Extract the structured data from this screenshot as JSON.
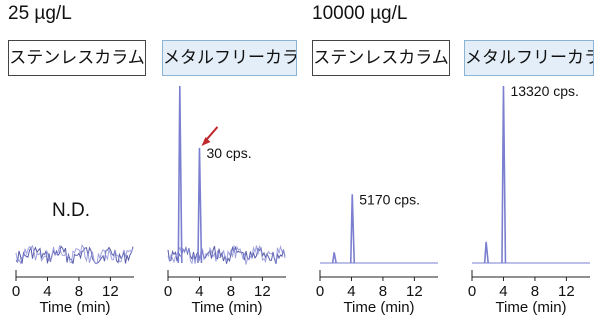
{
  "header": {
    "conc_low": "25 µg/L",
    "conc_high": "10000 µg/L"
  },
  "panel_labels": [
    "ステンレスカラム",
    "メタルフリーカラム",
    "ステンレスカラム",
    "メタルフリーカラム"
  ],
  "colors": {
    "trace": "#7a7fcf",
    "arrow": "#c0282d",
    "metal_label_bg": "#e3eef8"
  },
  "chart_data": [
    {
      "type": "line",
      "column": "ステンレスカラム",
      "concentration": "25 µg/L",
      "xlabel": "Time (min)",
      "xticks": [
        0,
        4,
        8,
        12
      ],
      "xlim": [
        0,
        15
      ],
      "peaks": [],
      "annotation": "N.D.",
      "noise": true
    },
    {
      "type": "line",
      "column": "メタルフリーカラム",
      "concentration": "25 µg/L",
      "xlabel": "Time (min)",
      "xticks": [
        0,
        4,
        8,
        12
      ],
      "xlim": [
        0,
        15
      ],
      "peaks": [
        {
          "x": 1.5,
          "y": 1.0
        },
        {
          "x": 4.0,
          "y": 0.65
        }
      ],
      "annotation": "30 cps.",
      "arrow": true,
      "noise": true
    },
    {
      "type": "line",
      "column": "ステンレスカラム",
      "concentration": "10000 µg/L",
      "xlabel": "Time (min)",
      "xticks": [
        0,
        4,
        8,
        12
      ],
      "xlim": [
        0,
        15
      ],
      "peaks": [
        {
          "x": 1.8,
          "y": 0.06
        },
        {
          "x": 4.1,
          "y": 0.388
        }
      ],
      "annotation": "5170 cps.",
      "noise": false
    },
    {
      "type": "line",
      "column": "メタルフリーカラム",
      "concentration": "10000 µg/L",
      "xlabel": "Time (min)",
      "xticks": [
        0,
        4,
        8,
        12
      ],
      "xlim": [
        0,
        15
      ],
      "peaks": [
        {
          "x": 1.8,
          "y": 0.12
        },
        {
          "x": 4.0,
          "y": 1.0
        }
      ],
      "annotation": "13320 cps.",
      "noise": false
    }
  ]
}
